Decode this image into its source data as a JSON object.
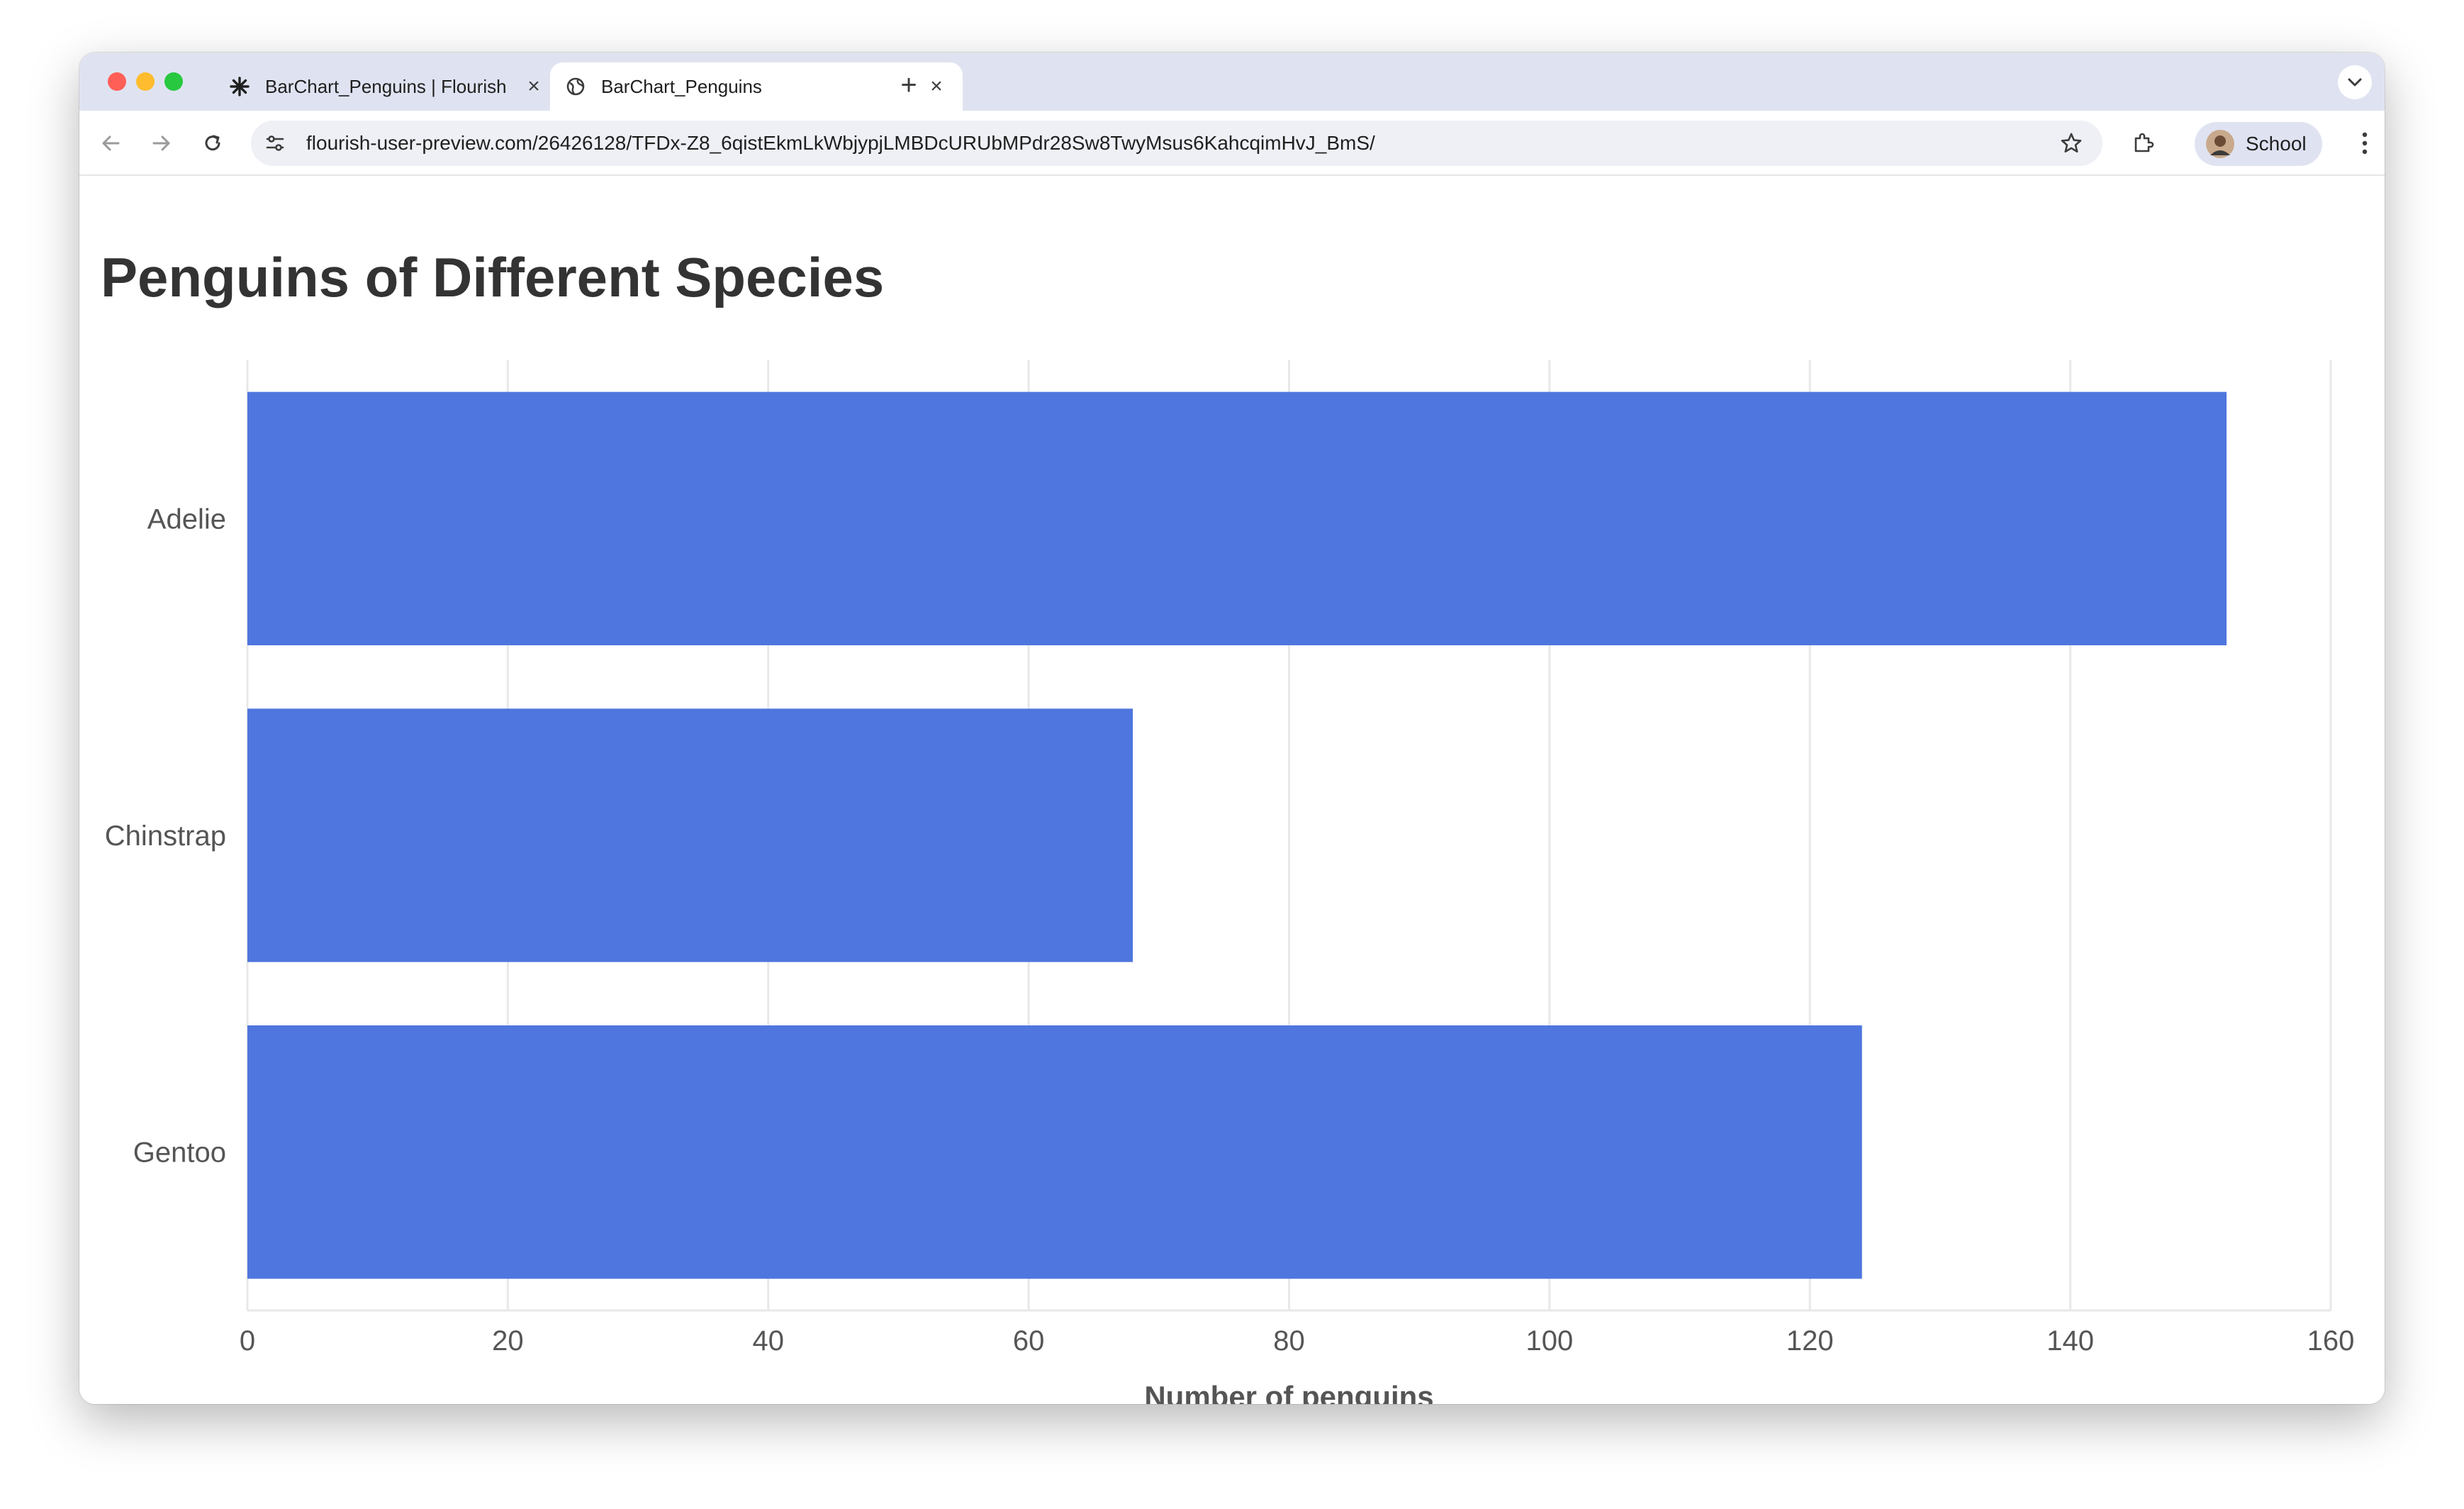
{
  "browser": {
    "tabs": [
      {
        "title": "BarChart_Penguins | Flourish",
        "icon": "flourish-asterisk-icon",
        "active": false
      },
      {
        "title": "BarChart_Penguins",
        "icon": "globe-icon",
        "active": true
      }
    ],
    "url": "flourish-user-preview.com/26426128/TFDx-Z8_6qistEkmLkWbjypjLMBDcURUbMPdr28Sw8TwyMsus6KahcqimHvJ_BmS/",
    "profile_label": "School"
  },
  "colors": {
    "bar": "#4f76de",
    "grid": "#e8e8e8",
    "title": "#333333",
    "label": "#555555"
  },
  "chart_data": {
    "type": "bar",
    "orientation": "horizontal",
    "title": "Penguins of Different Species",
    "categories": [
      "Adelie",
      "Chinstrap",
      "Gentoo"
    ],
    "values": [
      152,
      68,
      124
    ],
    "xlabel": "Number of penguins",
    "ylabel": "",
    "xlim": [
      0,
      160
    ],
    "xticks": [
      0,
      20,
      40,
      60,
      80,
      100,
      120,
      140,
      160
    ],
    "grid": true,
    "legend": "none"
  }
}
